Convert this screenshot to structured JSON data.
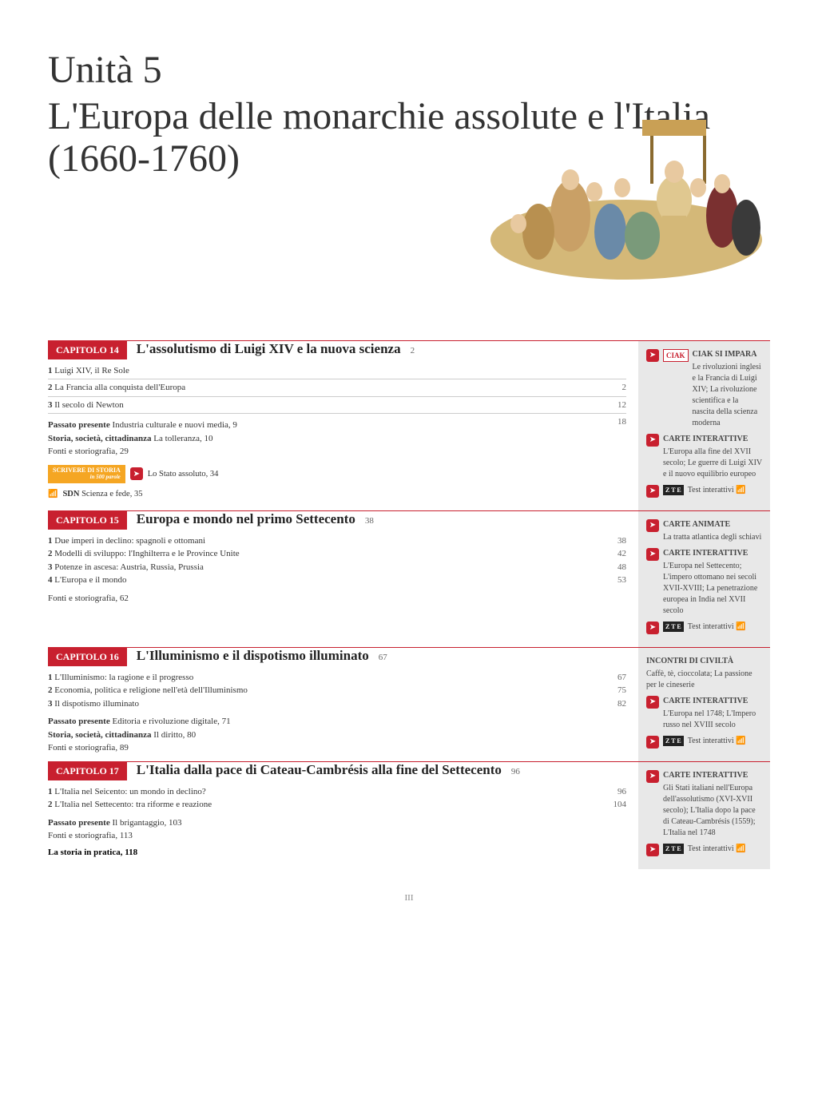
{
  "accent_color": "#c8202f",
  "sidebar_bg": "#e8e8e8",
  "badge_bg": "#f5a623",
  "unit": {
    "number": "Unità 5",
    "title": "L'Europa delle monarchie assolute e l'Italia (1660-1760)"
  },
  "chapters": [
    {
      "badge": "CAPITOLO 14",
      "title": "L'assolutismo di Luigi XIV e la nuova scienza",
      "page": "2",
      "sections": [
        {
          "n": "1",
          "t": "Luigi XIV, il Re Sole",
          "p": "2"
        },
        {
          "n": "2",
          "t": "La Francia alla conquista dell'Europa",
          "p": "12"
        },
        {
          "n": "3",
          "t": "Il secolo di Newton",
          "p": "18"
        }
      ],
      "extras": [
        {
          "cat": "Passato presente",
          "t": "Industria culturale e nuovi media, 9"
        },
        {
          "cat": "Storia, società, cittadinanza",
          "t": "La tolleranza, 10"
        },
        {
          "cat": "",
          "t": "Fonti e storiografia, 29"
        }
      ],
      "scrivere": "Lo Stato assoluto, 34",
      "sdn": "Scienza e fede, 35",
      "sidebar": [
        {
          "type": "ciak",
          "title": "CIAK SI IMPARA",
          "txt": "Le rivoluzioni inglesi e la Francia di Luigi XIV; La rivoluzione scientifica e la nascita della scienza moderna"
        },
        {
          "type": "click",
          "title": "CARTE INTERATTIVE",
          "txt": "L'Europa alla fine del XVII secolo; Le guerre di Luigi XIV e il nuovo equilibrio europeo"
        },
        {
          "type": "zte",
          "title": "",
          "txt": "Test interattivi"
        }
      ]
    },
    {
      "badge": "CAPITOLO 15",
      "title": "Europa e mondo nel primo Settecento",
      "page": "38",
      "sections": [
        {
          "n": "1",
          "t": "Due imperi in declino: spagnoli e ottomani",
          "p": "38"
        },
        {
          "n": "2",
          "t": "Modelli di sviluppo: l'Inghilterra e le Province Unite",
          "p": "42"
        },
        {
          "n": "3",
          "t": "Potenze in ascesa: Austria, Russia, Prussia",
          "p": "48"
        },
        {
          "n": "4",
          "t": "L'Europa e il mondo",
          "p": "53"
        }
      ],
      "extras": [
        {
          "cat": "",
          "t": "Fonti e storiografia, 62"
        }
      ],
      "sidebar": [
        {
          "type": "click",
          "title": "CARTE ANIMATE",
          "txt": "La tratta atlantica degli schiavi"
        },
        {
          "type": "click",
          "title": "CARTE INTERATTIVE",
          "txt": "L'Europa nel Settecento; L'impero ottomano nei secoli XVII-XVIII; La penetrazione europea in India nel XVII secolo"
        },
        {
          "type": "zte",
          "title": "",
          "txt": "Test interattivi"
        }
      ]
    },
    {
      "badge": "CAPITOLO 16",
      "title": "L'Illuminismo e il dispotismo illuminato",
      "page": "67",
      "sections": [
        {
          "n": "1",
          "t": "L'Illuminismo: la ragione e il progresso",
          "p": "67"
        },
        {
          "n": "2",
          "t": "Economia, politica e religione nell'età dell'Illuminismo",
          "p": "75"
        },
        {
          "n": "3",
          "t": "Il dispotismo illuminato",
          "p": "82"
        }
      ],
      "extras": [
        {
          "cat": "Passato presente",
          "t": "Editoria e rivoluzione digitale, 71"
        },
        {
          "cat": "Storia, società, cittadinanza",
          "t": "Il diritto, 80"
        },
        {
          "cat": "",
          "t": "Fonti e storiografia, 89"
        }
      ],
      "sidebar": [
        {
          "type": "plain",
          "title": "INCONTRI DI CIVILTÀ",
          "txt": "Caffè, tè, cioccolata; La passione per le cineserie"
        },
        {
          "type": "click",
          "title": "CARTE INTERATTIVE",
          "txt": "L'Europa nel 1748; L'Impero russo nel XVIII secolo"
        },
        {
          "type": "zte",
          "title": "",
          "txt": "Test interattivi"
        }
      ]
    },
    {
      "badge": "CAPITOLO 17",
      "title": "L'Italia dalla pace di Cateau-Cambrésis alla fine del Settecento",
      "page": "96",
      "sections": [
        {
          "n": "1",
          "t": "L'Italia nel Seicento: un mondo in declino?",
          "p": "96"
        },
        {
          "n": "2",
          "t": "L'Italia nel Settecento: tra riforme e reazione",
          "p": "104"
        }
      ],
      "extras": [
        {
          "cat": "Passato presente",
          "t": "Il brigantaggio, 103"
        },
        {
          "cat": "",
          "t": "Fonti e storiografia, 113"
        }
      ],
      "endnote": "La storia in pratica, 118",
      "sidebar": [
        {
          "type": "click",
          "title": "CARTE INTERATTIVE",
          "txt": "Gli Stati italiani nell'Europa dell'assolutismo (XVI-XVII secolo); L'Italia dopo la pace di Cateau-Cambrésis (1559); L'Italia nel 1748"
        },
        {
          "type": "zte",
          "title": "",
          "txt": "Test interattivi"
        }
      ]
    }
  ],
  "footer_page": "III"
}
